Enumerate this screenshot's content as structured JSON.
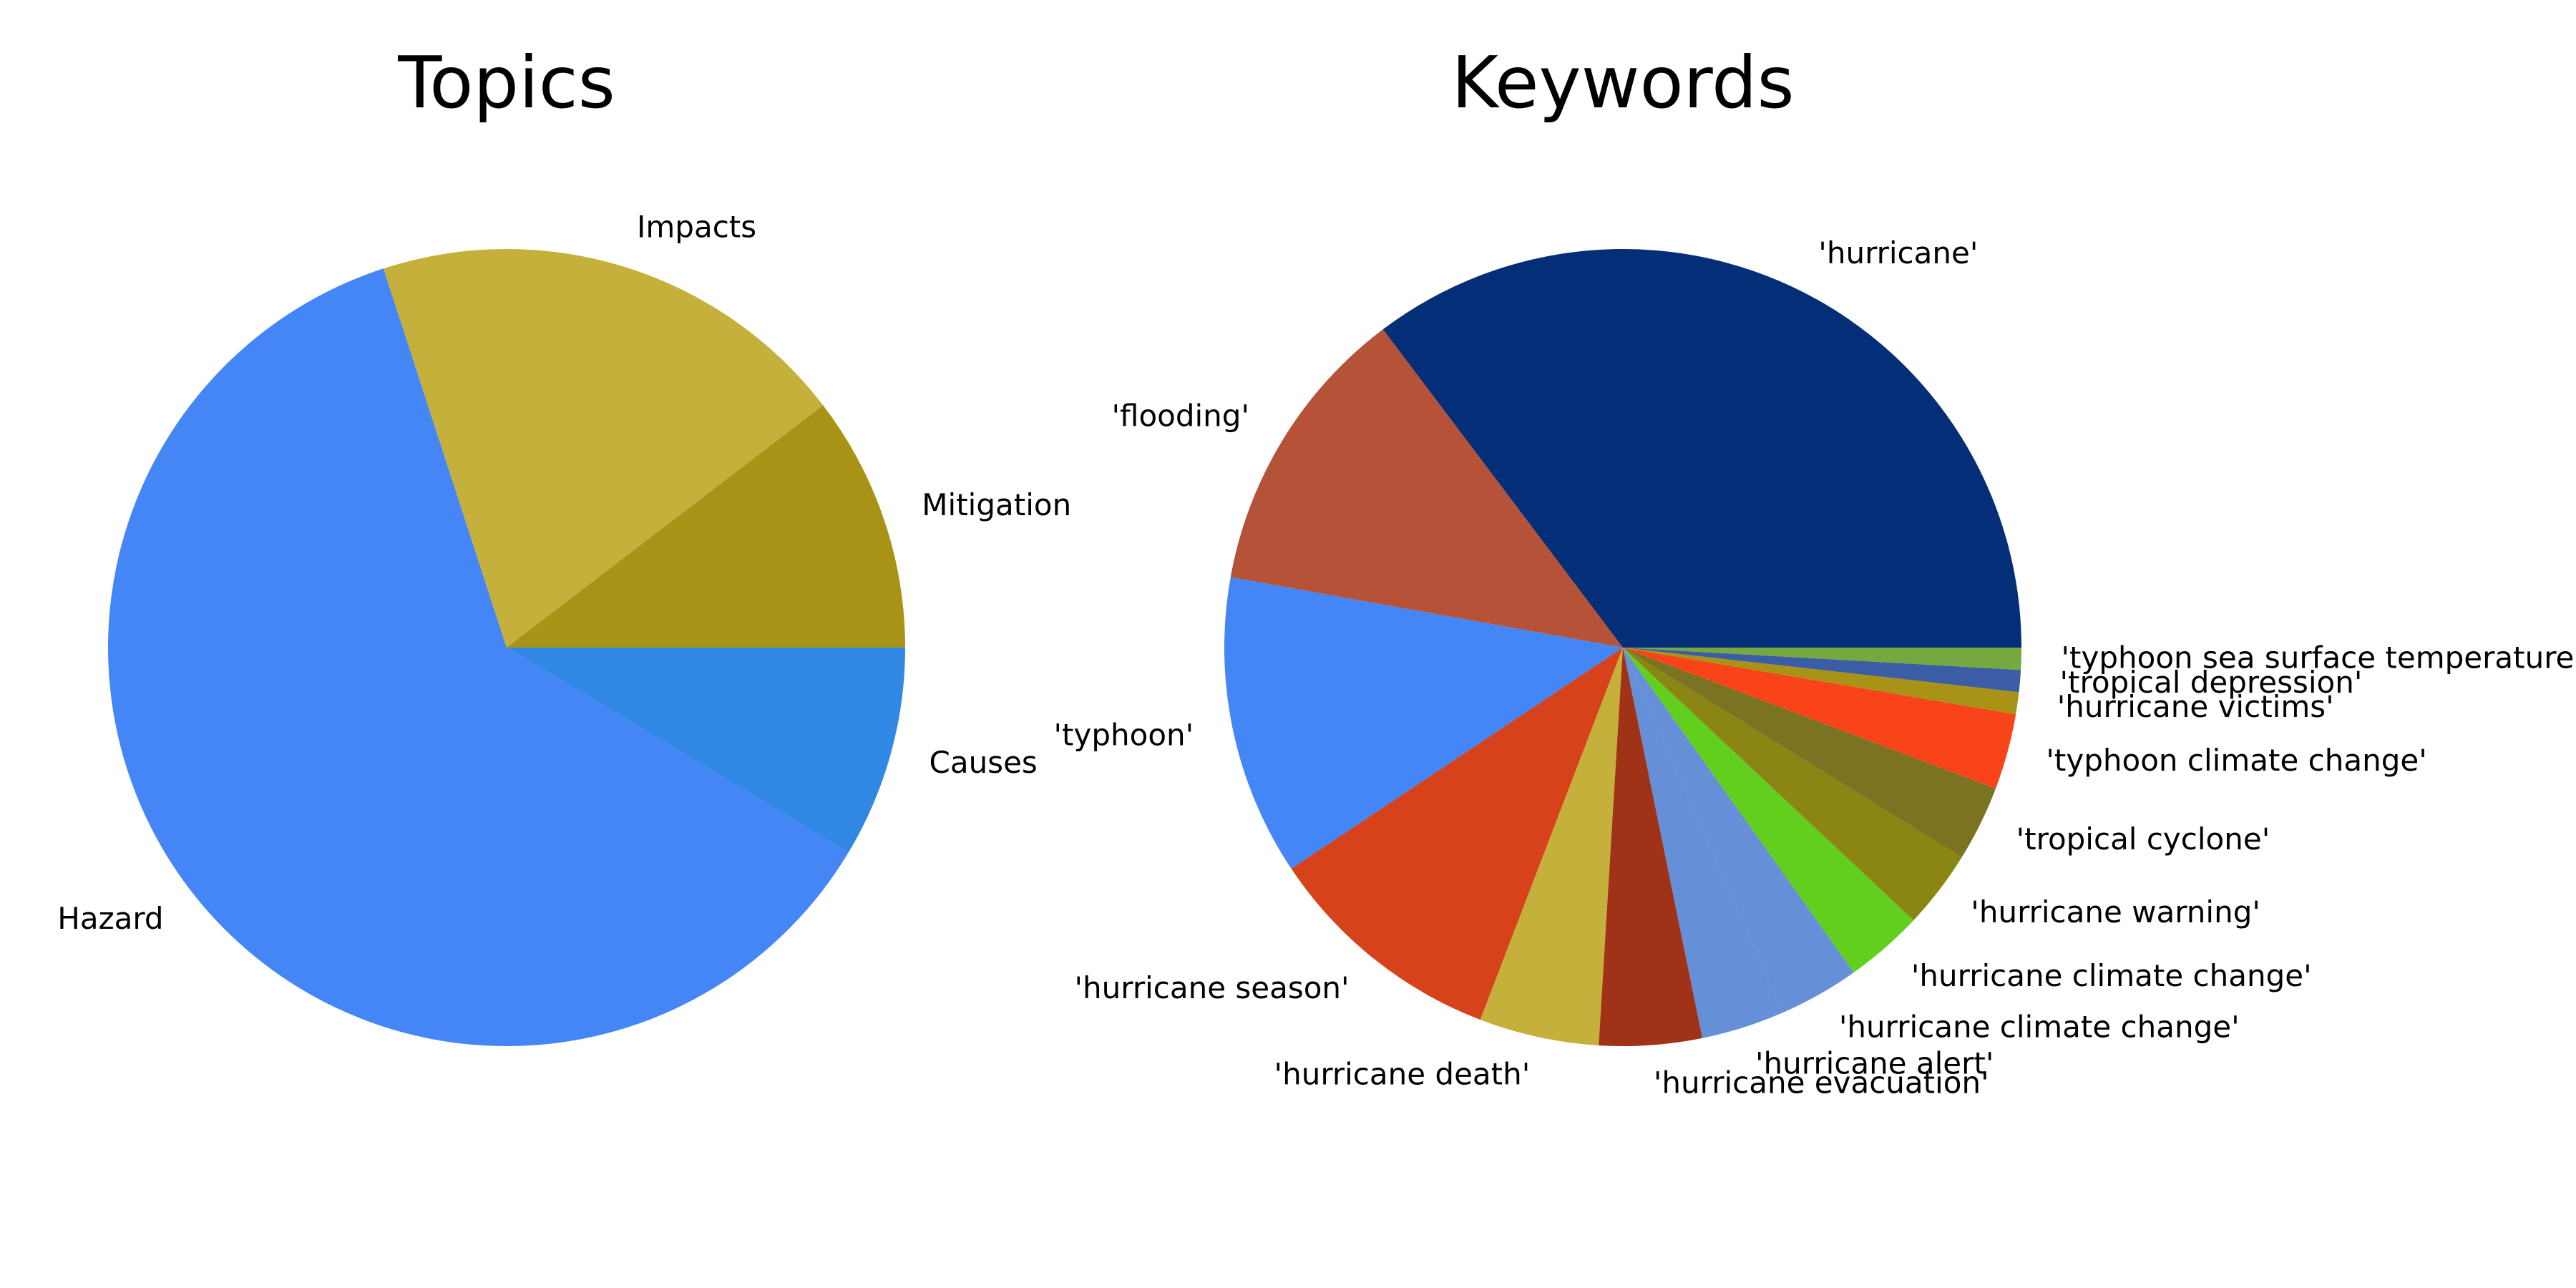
{
  "chart_data": [
    {
      "type": "pie",
      "title": "Topics",
      "start_angle_deg": 0,
      "direction": "clockwise",
      "slices": [
        {
          "label": "Causes",
          "value": 8.6,
          "color": "#3188e4"
        },
        {
          "label": "Hazard",
          "value": 61.4,
          "color": "#4586f6"
        },
        {
          "label": "Impacts",
          "value": 19.6,
          "color": "#c5b03b"
        },
        {
          "label": "Mitigation",
          "value": 10.4,
          "color": "#a89317"
        }
      ]
    },
    {
      "type": "pie",
      "title": "Keywords",
      "start_angle_deg": 0,
      "direction": "counterclockwise",
      "slices": [
        {
          "label": "'hurricane'",
          "value": 35.6,
          "color": "#042f78"
        },
        {
          "label": "'flooding'",
          "value": 12.0,
          "color": "#b55237"
        },
        {
          "label": "'typhoon'",
          "value": 12.3,
          "color": "#4586f6"
        },
        {
          "label": "'hurricane season'",
          "value": 9.9,
          "color": "#d64219"
        },
        {
          "label": "'hurricane death'",
          "value": 4.9,
          "color": "#c5b03b"
        },
        {
          "label": "'hurricane evacuation'",
          "value": 4.2,
          "color": "#a03217"
        },
        {
          "label": "'hurricane alert'",
          "value": 3.4,
          "color": "#658fd6"
        },
        {
          "label": "'hurricane climate change'",
          "value": 3.3,
          "color": "#658fd6"
        },
        {
          "label": "'hurricane climate change'",
          "value": 3.2,
          "color": "#62cf1f"
        },
        {
          "label": "'hurricane warning'",
          "value": 3.2,
          "color": "#8b8613"
        },
        {
          "label": "'tropical cyclone'",
          "value": 3.1,
          "color": "#7b7322"
        },
        {
          "label": "'typhoon climate change'",
          "value": 3.1,
          "color": "#f84418"
        },
        {
          "label": "'hurricane victims'",
          "value": 0.9,
          "color": "#a89317"
        },
        {
          "label": "'tropical depression'",
          "value": 0.9,
          "color": "#3b5da5"
        },
        {
          "label": "'typhoon sea surface temperature'",
          "value": 0.9,
          "color": "#76a840"
        }
      ]
    }
  ]
}
